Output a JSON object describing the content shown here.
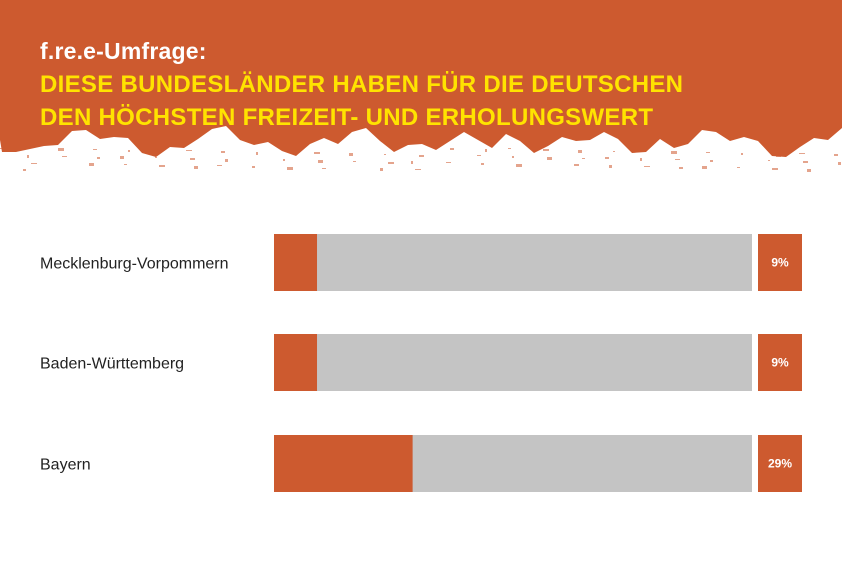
{
  "header": {
    "brand": "f.re.e-Umfrage:",
    "title_lines": [
      "DIESE BUNDESLÄNDER HABEN FÜR DIE DEUTSCHEN",
      "DEN HÖCHSTEN FREIZEIT- UND ERHOLUNGSWERT"
    ]
  },
  "colors": {
    "header_bg": "#cd5a2f",
    "title_text": "#ffe300",
    "bar_fill": "#cd5a2f",
    "bar_track": "#c4c4c4"
  },
  "chart_data": {
    "type": "bar",
    "orientation": "horizontal",
    "categories": [
      "Mecklenburg-Vorpommern",
      "Baden-Württemberg",
      "Bayern"
    ],
    "values": [
      9,
      9,
      29
    ],
    "value_labels": [
      "9%",
      "9%",
      "29%"
    ],
    "unit": "%",
    "xlim": [
      0,
      100
    ],
    "title": "",
    "xlabel": "",
    "ylabel": "",
    "grid": false,
    "legend": false
  }
}
